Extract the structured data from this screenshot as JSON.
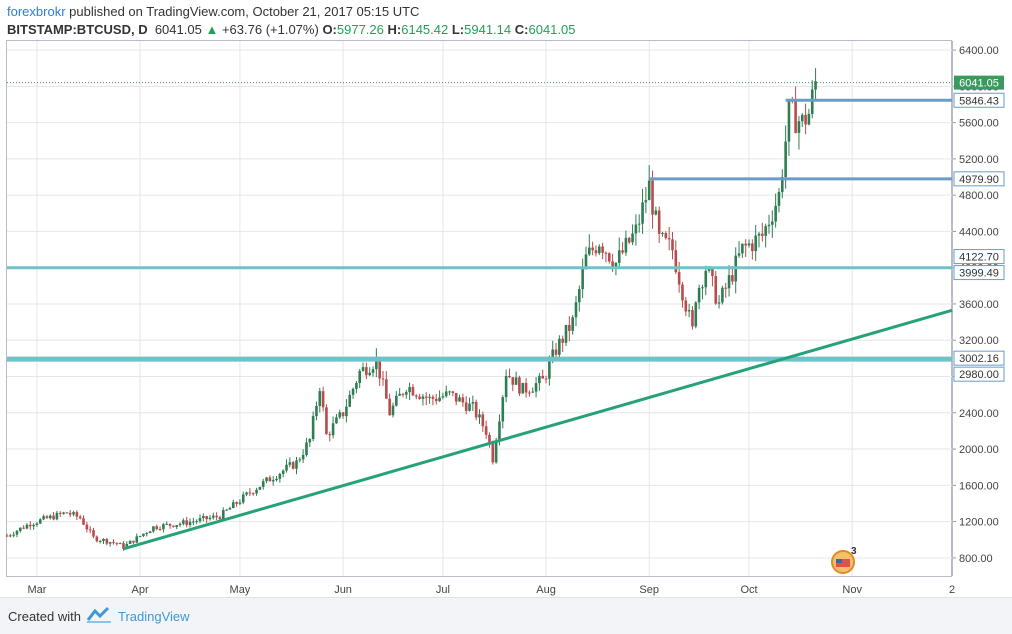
{
  "header": {
    "author": "forexbrokr",
    "published": "published on TradingView.com, October 21, 2017 05:15 UTC",
    "symbol": "BITSTAMP:BTCUSD, D",
    "last": "6041.05",
    "change": "+63.76 (+1.07%)",
    "o_label": "O:",
    "o_value": "5977.26",
    "h_label": "H:",
    "h_value": "6145.42",
    "l_label": "L:",
    "l_value": "5941.14",
    "c_label": "C:",
    "c_value": "6041.05"
  },
  "footer": {
    "created": "Created with",
    "brand": "TradingView"
  },
  "watermark_badge": "3",
  "colors": {
    "up": "#2f7d52",
    "down": "#b84b4b",
    "hline": "#6fc2c8",
    "level_line": "#6b9bc8",
    "trend": "#26a27a",
    "last_label": "#3c9a5f",
    "level_label": "#6b9bc8",
    "grid": "#e4e6eb"
  },
  "chart_data": {
    "type": "candlestick",
    "ylim": [
      600,
      6500
    ],
    "y_ticks": [
      "800.00",
      "1200.00",
      "1600.00",
      "2000.00",
      "2400.00",
      "2800.00",
      "3200.00",
      "3600.00",
      "4000.00",
      "4400.00",
      "4800.00",
      "5200.00",
      "5600.00",
      "6000.00",
      "6400.00"
    ],
    "x_ticks": [
      {
        "date": "2017-03-01",
        "label": "Mar"
      },
      {
        "date": "2017-04-01",
        "label": "Apr"
      },
      {
        "date": "2017-05-01",
        "label": "May"
      },
      {
        "date": "2017-06-01",
        "label": "Jun"
      },
      {
        "date": "2017-07-01",
        "label": "Jul"
      },
      {
        "date": "2017-08-01",
        "label": "Aug"
      },
      {
        "date": "2017-09-01",
        "label": "Sep"
      },
      {
        "date": "2017-10-01",
        "label": "Oct"
      },
      {
        "date": "2017-11-01",
        "label": "Nov"
      },
      {
        "date": "2017-12-01",
        "label": "2"
      }
    ],
    "x_range": [
      "2017-02-20",
      "2017-12-01"
    ],
    "price_path": [
      [
        "2017-02-20",
        1045
      ],
      [
        "2017-02-27",
        1180
      ],
      [
        "2017-03-10",
        1300
      ],
      [
        "2017-03-14",
        1240
      ],
      [
        "2017-03-18",
        1020
      ],
      [
        "2017-03-25",
        960
      ],
      [
        "2017-03-27",
        920
      ],
      [
        "2017-04-05",
        1140
      ],
      [
        "2017-04-15",
        1190
      ],
      [
        "2017-04-25",
        1260
      ],
      [
        "2017-05-05",
        1550
      ],
      [
        "2017-05-12",
        1720
      ],
      [
        "2017-05-18",
        1850
      ],
      [
        "2017-05-22",
        2100
      ],
      [
        "2017-05-25",
        2700
      ],
      [
        "2017-05-27",
        2150
      ],
      [
        "2017-06-01",
        2400
      ],
      [
        "2017-06-06",
        2850
      ],
      [
        "2017-06-11",
        2980
      ],
      [
        "2017-06-15",
        2400
      ],
      [
        "2017-06-20",
        2700
      ],
      [
        "2017-06-27",
        2550
      ],
      [
        "2017-07-03",
        2600
      ],
      [
        "2017-07-10",
        2450
      ],
      [
        "2017-07-14",
        2200
      ],
      [
        "2017-07-16",
        1900
      ],
      [
        "2017-07-20",
        2850
      ],
      [
        "2017-07-25",
        2650
      ],
      [
        "2017-07-31",
        2750
      ],
      [
        "2017-08-04",
        3100
      ],
      [
        "2017-08-09",
        3400
      ],
      [
        "2017-08-13",
        4100
      ],
      [
        "2017-08-17",
        4300
      ],
      [
        "2017-08-22",
        4050
      ],
      [
        "2017-08-28",
        4400
      ],
      [
        "2017-09-01",
        4900
      ],
      [
        "2017-09-04",
        4300
      ],
      [
        "2017-09-08",
        4200
      ],
      [
        "2017-09-14",
        3300
      ],
      [
        "2017-09-15",
        3700
      ],
      [
        "2017-09-18",
        4000
      ],
      [
        "2017-09-22",
        3600
      ],
      [
        "2017-09-29",
        4200
      ],
      [
        "2017-10-05",
        4350
      ],
      [
        "2017-10-10",
        4800
      ],
      [
        "2017-10-12",
        5400
      ],
      [
        "2017-10-13",
        5700
      ],
      [
        "2017-10-17",
        5600
      ],
      [
        "2017-10-19",
        5700
      ],
      [
        "2017-10-21",
        6041
      ]
    ],
    "horizontal_lines": [
      {
        "value": 3999.49,
        "label": "3999.49",
        "style": "support"
      },
      {
        "value": 3002.16,
        "label": "3002.16",
        "style": "support"
      },
      {
        "value": 2980.0,
        "label": "2980.00",
        "style": "support"
      }
    ],
    "level_lines": [
      {
        "value": 5846.43,
        "label": "5846.43",
        "start": "2017-10-12"
      },
      {
        "value": 4979.9,
        "label": "4979.90",
        "start": "2017-09-01"
      }
    ],
    "price_labels": [
      {
        "value": 6041.05,
        "label": "6041.05",
        "style": "last"
      },
      {
        "value": 4122.7,
        "label": "4122.70",
        "style": "level"
      }
    ],
    "trendline": {
      "start": [
        "2017-03-27",
        900
      ],
      "end": [
        "2017-12-01",
        3530
      ]
    }
  }
}
